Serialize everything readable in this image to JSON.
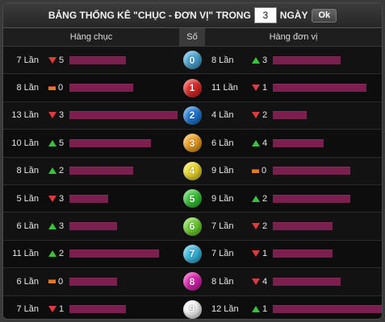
{
  "title": {
    "prefix": "BẢNG THỐNG KÊ \"CHỤC - ĐƠN VỊ\" TRONG",
    "days_value": "3",
    "suffix": "NGÀY",
    "ok_label": "Ok"
  },
  "headers": {
    "left": "Hàng chục",
    "middle": "Số",
    "right": "Hàng đơn vị"
  },
  "rows": [
    {
      "digit": "0",
      "ball_color": "#4aa6d6",
      "left_count": "7 Lần",
      "left_trend": "down",
      "left_value": "5",
      "left_bar_pct": 0.52,
      "right_count": "8 Lần",
      "right_trend": "up",
      "right_value": "3",
      "right_bar_pct": 0.62
    },
    {
      "digit": "1",
      "ball_color": "#e02828",
      "left_count": "8 Lần",
      "left_trend": "same",
      "left_value": "0",
      "left_bar_pct": 0.59,
      "right_count": "11 Lần",
      "right_trend": "down",
      "right_value": "1",
      "right_bar_pct": 0.86
    },
    {
      "digit": "2",
      "ball_color": "#1e78d6",
      "left_count": "13 Lần",
      "left_trend": "down",
      "left_value": "3",
      "left_bar_pct": 1.0,
      "right_count": "4 Lần",
      "right_trend": "down",
      "right_value": "2",
      "right_bar_pct": 0.31
    },
    {
      "digit": "3",
      "ball_color": "#f0a020",
      "left_count": "10 Lần",
      "left_trend": "up",
      "left_value": "5",
      "left_bar_pct": 0.75,
      "right_count": "6 Lần",
      "right_trend": "up",
      "right_value": "4",
      "right_bar_pct": 0.47
    },
    {
      "digit": "4",
      "ball_color": "#ecd82a",
      "left_count": "8 Lần",
      "left_trend": "up",
      "left_value": "2",
      "left_bar_pct": 0.59,
      "right_count": "9 Lần",
      "right_trend": "same",
      "right_value": "0",
      "right_bar_pct": 0.71
    },
    {
      "digit": "5",
      "ball_color": "#34c434",
      "left_count": "5 Lần",
      "left_trend": "down",
      "left_value": "3",
      "left_bar_pct": 0.36,
      "right_count": "9 Lần",
      "right_trend": "up",
      "right_value": "2",
      "right_bar_pct": 0.71
    },
    {
      "digit": "6",
      "ball_color": "#6cd030",
      "left_count": "6 Lần",
      "left_trend": "up",
      "left_value": "3",
      "left_bar_pct": 0.44,
      "right_count": "7 Lần",
      "right_trend": "down",
      "right_value": "2",
      "right_bar_pct": 0.55
    },
    {
      "digit": "7",
      "ball_color": "#38b8e0",
      "left_count": "11 Lần",
      "left_trend": "up",
      "left_value": "2",
      "left_bar_pct": 0.83,
      "right_count": "7 Lần",
      "right_trend": "down",
      "right_value": "1",
      "right_bar_pct": 0.55
    },
    {
      "digit": "8",
      "ball_color": "#e020b0",
      "left_count": "6 Lần",
      "left_trend": "same",
      "left_value": "0",
      "left_bar_pct": 0.44,
      "right_count": "8 Lần",
      "right_trend": "down",
      "right_value": "4",
      "right_bar_pct": 0.62
    },
    {
      "digit": "9",
      "ball_color": "#f4f4f4",
      "left_count": "7 Lần",
      "left_trend": "down",
      "left_value": "1",
      "left_bar_pct": 0.52,
      "right_count": "12 Lần",
      "right_trend": "up",
      "right_value": "1",
      "right_bar_pct": 1.0
    }
  ],
  "colors": {
    "bar": "#7a1f4e",
    "trend_up": "#39c43a",
    "trend_down": "#e23a3a",
    "trend_same": "#e07a1a"
  }
}
